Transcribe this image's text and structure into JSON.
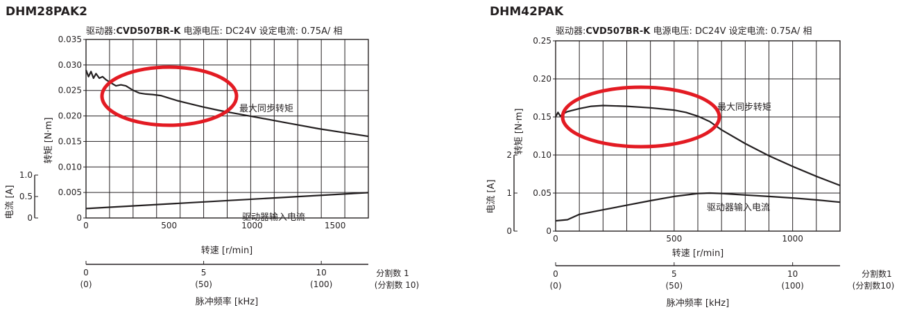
{
  "chart_data": [
    {
      "type": "line",
      "title": "DHM28PAK2",
      "subtitle": {
        "driver_label": "驱动器:",
        "driver": "CVD507BR-K",
        "voltage": "电源电压: DC24V",
        "current": "设定电流: 0.75A/ 相"
      },
      "xlabel": "转速 [r/min]",
      "ylabel": "转矩 [N·m]",
      "y2label": "电流 [A]",
      "xlim": [
        0,
        1700
      ],
      "ylim": [
        0,
        0.035
      ],
      "y2lim": [
        0,
        1.0
      ],
      "x_ticks": [
        "0",
        "500",
        "1000",
        "1500"
      ],
      "y_ticks": [
        "0",
        "0.005",
        "0.010",
        "0.015",
        "0.020",
        "0.025",
        "0.030",
        "0.035"
      ],
      "y2_ticks": [
        "0",
        "0.5",
        "1.0"
      ],
      "grid": true,
      "secondary_axis": {
        "label": "脉冲频率 [kHz]",
        "ticks": [
          {
            "top": "0",
            "bottom": "(0)"
          },
          {
            "top": "5",
            "bottom": "(50)"
          },
          {
            "top": "10",
            "bottom": "(100)"
          }
        ],
        "note_top": "分割数 1",
        "note_bottom": "(分割数 10)"
      },
      "series": [
        {
          "name": "最大同步转矩",
          "axis": "left",
          "x": [
            0,
            15,
            30,
            45,
            60,
            80,
            100,
            120,
            150,
            180,
            210,
            240,
            280,
            320,
            360,
            400,
            450,
            500,
            550,
            600,
            700,
            800,
            900,
            1000,
            1100,
            1200,
            1300,
            1400,
            1500,
            1600,
            1700
          ],
          "y": [
            0.029,
            0.0277,
            0.0287,
            0.0274,
            0.0283,
            0.0274,
            0.0277,
            0.0271,
            0.0265,
            0.0259,
            0.0261,
            0.0259,
            0.0251,
            0.0245,
            0.0243,
            0.0242,
            0.024,
            0.0235,
            0.023,
            0.0226,
            0.0218,
            0.0211,
            0.0205,
            0.0199,
            0.0193,
            0.0187,
            0.0181,
            0.0175,
            0.017,
            0.0165,
            0.016
          ]
        },
        {
          "name": "驱动器输入电流",
          "axis": "right",
          "x": [
            0,
            1700
          ],
          "y": [
            0.22,
            0.59
          ]
        }
      ],
      "annotations": [
        "最大同步转矩",
        "驱动器输入电流"
      ]
    },
    {
      "type": "line",
      "title": "DHM42PAK",
      "subtitle": {
        "driver_label": "驱动器:",
        "driver": "CVD507BR-K",
        "voltage": "电源电压: DC24V",
        "current": "设定电流: 0.75A/ 相"
      },
      "xlabel": "转速 [r/min]",
      "ylabel": "转矩 [N·m]",
      "y2label": "电流 [A]",
      "xlim": [
        0,
        1200
      ],
      "ylim": [
        0,
        0.25
      ],
      "y2lim": [
        0,
        2
      ],
      "x_ticks": [
        "0",
        "500",
        "1000"
      ],
      "y_ticks": [
        "0",
        "0.05",
        "0.10",
        "0.15",
        "0.20",
        "0.25"
      ],
      "y2_ticks": [
        "0",
        "1",
        "2"
      ],
      "grid": true,
      "secondary_axis": {
        "label": "脉冲频率 [kHz]",
        "ticks": [
          {
            "top": "0",
            "bottom": "(0)"
          },
          {
            "top": "5",
            "bottom": "(50)"
          },
          {
            "top": "10",
            "bottom": "(100)"
          }
        ],
        "note_top": "分割数1",
        "note_bottom": "(分割数10)"
      },
      "series": [
        {
          "name": "最大同步转矩",
          "axis": "left",
          "x": [
            0,
            10,
            20,
            30,
            50,
            100,
            150,
            200,
            300,
            400,
            500,
            550,
            600,
            650,
            700,
            800,
            900,
            1000,
            1100,
            1200
          ],
          "y": [
            0.15,
            0.156,
            0.151,
            0.154,
            0.157,
            0.161,
            0.164,
            0.165,
            0.164,
            0.162,
            0.159,
            0.156,
            0.151,
            0.144,
            0.133,
            0.115,
            0.099,
            0.085,
            0.072,
            0.06
          ]
        },
        {
          "name": "驱动器输入电流",
          "axis": "right",
          "x": [
            0,
            50,
            100,
            200,
            300,
            400,
            500,
            600,
            650,
            700,
            800,
            900,
            1000,
            1100,
            1200
          ],
          "y": [
            0.27,
            0.3,
            0.44,
            0.56,
            0.68,
            0.8,
            0.91,
            0.99,
            1.0,
            0.99,
            0.95,
            0.91,
            0.87,
            0.82,
            0.76
          ]
        }
      ],
      "annotations": [
        "最大同步转矩",
        "驱动器输入电流"
      ]
    }
  ],
  "highlights": [
    {
      "color": "#e31b23",
      "shape": "ellipse"
    },
    {
      "color": "#e31b23",
      "shape": "ellipse"
    }
  ],
  "colors": {
    "ink": "#231f20",
    "highlight": "#e31b23"
  }
}
